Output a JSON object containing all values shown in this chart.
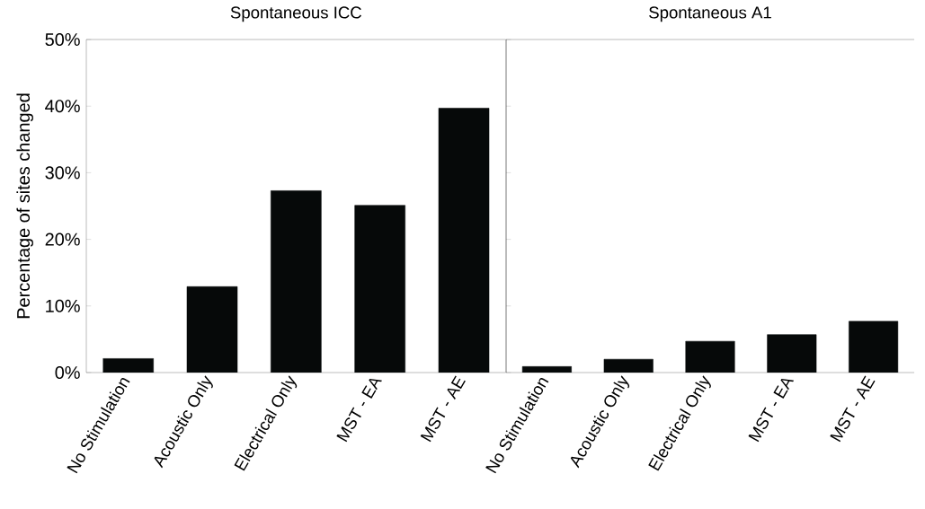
{
  "chart_data": [
    {
      "type": "bar",
      "title": "Spontaneous ICC",
      "ylabel": "Percentage of sites changed",
      "categories": [
        "No Stimulation",
        "Acoustic Only",
        "Electrical Only",
        "MST - EA",
        "MST - AE"
      ],
      "values": [
        2.1,
        12.9,
        27.3,
        25.1,
        39.7
      ],
      "color": "#060909",
      "ylim": [
        0,
        50
      ],
      "yticks": [
        {
          "value": 0,
          "label": "0%"
        },
        {
          "value": 10,
          "label": "10%"
        },
        {
          "value": 20,
          "label": "20%"
        },
        {
          "value": 30,
          "label": "30%"
        },
        {
          "value": 40,
          "label": "40%"
        },
        {
          "value": 50,
          "label": "50%"
        }
      ]
    },
    {
      "type": "bar",
      "title": "Spontaneous A1",
      "categories": [
        "No Stimulation",
        "Acoustic Only",
        "Electrical Only",
        "MST - EA",
        "MST - AE"
      ],
      "values": [
        0.9,
        2.0,
        4.7,
        5.7,
        7.7
      ],
      "color": "#060909",
      "ylim": [
        0,
        50
      ],
      "yticks": [
        {
          "value": 0,
          "label": null
        },
        {
          "value": 10,
          "label": null
        },
        {
          "value": 20,
          "label": null
        },
        {
          "value": 30,
          "label": null
        },
        {
          "value": 40,
          "label": null
        },
        {
          "value": 50,
          "label": null
        }
      ],
      "tick_labels": "x"
    }
  ]
}
